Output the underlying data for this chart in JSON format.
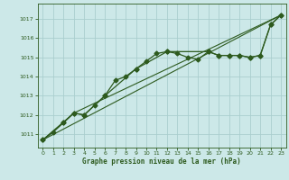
{
  "title": "Graphe pression niveau de la mer (hPa)",
  "bg_color": "#cce8e8",
  "grid_color": "#aacece",
  "line_color": "#2d5a1e",
  "xlim": [
    -0.5,
    23.5
  ],
  "ylim": [
    1010.3,
    1017.8
  ],
  "yticks": [
    1011,
    1012,
    1013,
    1014,
    1015,
    1016,
    1017
  ],
  "xticks": [
    0,
    1,
    2,
    3,
    4,
    5,
    6,
    7,
    8,
    9,
    10,
    11,
    12,
    13,
    14,
    15,
    16,
    17,
    18,
    19,
    20,
    21,
    22,
    23
  ],
  "series": [
    {
      "x": [
        0,
        1,
        2,
        3,
        4,
        5,
        6,
        7,
        8,
        9,
        10,
        11,
        12,
        13,
        14,
        15,
        16,
        17,
        18,
        19,
        20,
        21,
        22,
        23
      ],
      "y": [
        1010.7,
        1011.1,
        1011.6,
        1012.1,
        1012.0,
        1012.5,
        1013.0,
        1013.8,
        1014.0,
        1014.4,
        1014.8,
        1015.2,
        1015.3,
        1015.2,
        1015.0,
        1014.9,
        1015.3,
        1015.1,
        1015.1,
        1015.1,
        1015.0,
        1015.1,
        1016.7,
        1017.2
      ],
      "marker": "D",
      "markersize": 2.5
    },
    {
      "x": [
        0,
        2,
        3,
        4,
        6,
        9,
        12,
        16,
        17,
        18,
        19,
        20,
        21,
        22,
        23
      ],
      "y": [
        1010.7,
        1011.6,
        1012.1,
        1012.0,
        1013.0,
        1014.4,
        1015.3,
        1015.3,
        1015.1,
        1015.1,
        1015.1,
        1015.0,
        1015.1,
        1016.7,
        1017.2
      ],
      "marker": "D",
      "markersize": 2.5
    },
    {
      "x": [
        0,
        23
      ],
      "y": [
        1010.7,
        1017.2
      ],
      "marker": null,
      "markersize": 0
    },
    {
      "x": [
        0,
        3,
        23
      ],
      "y": [
        1010.7,
        1012.1,
        1017.2
      ],
      "marker": null,
      "markersize": 0
    }
  ]
}
